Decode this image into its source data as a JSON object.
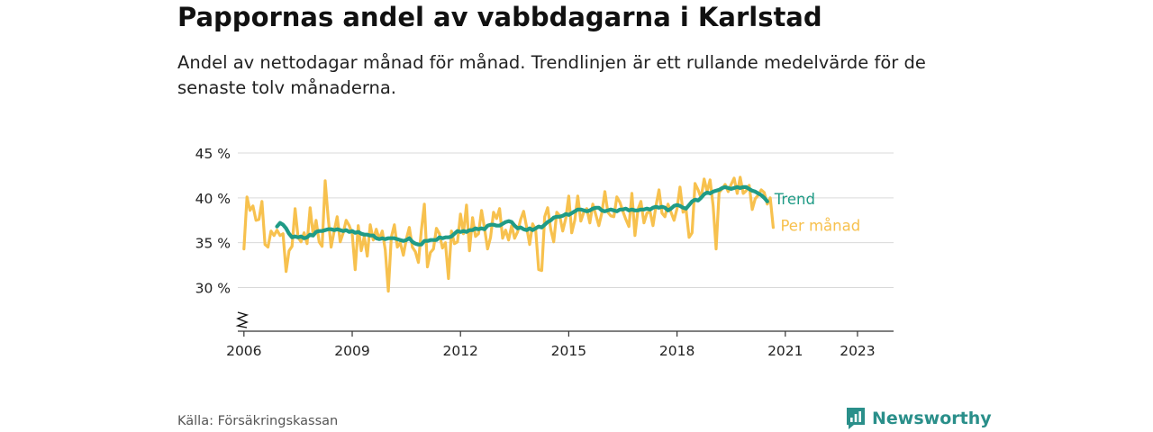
{
  "title": "Pappornas andel av vabbdagarna i Karlstad",
  "subtitle": "Andel av nettodagar månad för månad. Trendlinjen är ett rullande medelvärde för de senaste tolv månaderna.",
  "source": "Källa: Försäkringskassan",
  "brand": "Newsworthy",
  "colors": {
    "monthly": "#f7c14e",
    "trend": "#1f9b86",
    "grid": "#d9d9d9",
    "axis": "#333333",
    "brand": "#2a8f8a"
  },
  "chart_data": {
    "type": "line",
    "xlabel": "",
    "ylabel": "",
    "x_ticks": [
      "2006",
      "2009",
      "2012",
      "2015",
      "2018",
      "2021",
      "2023"
    ],
    "y_ticks": [
      "30 %",
      "35 %",
      "40 %",
      "45 %"
    ],
    "ylim": [
      25,
      45
    ],
    "y_axis_break": true,
    "grid": true,
    "series_labels": [
      "Trend",
      "Per månad"
    ],
    "series": [
      {
        "name": "Per månad",
        "x_start": "2006-01",
        "frequency": "monthly",
        "values": [
          34.3,
          40.1,
          38.6,
          39.1,
          37.5,
          37.6,
          39.6,
          34.8,
          34.5,
          36.3,
          35.8,
          36.4,
          35.8,
          36.0,
          31.8,
          34.1,
          34.6,
          38.8,
          35.6,
          35.1,
          36.1,
          34.9,
          38.9,
          35.9,
          37.5,
          35.1,
          34.6,
          41.9,
          37.8,
          34.5,
          36.3,
          37.9,
          35.1,
          36.1,
          37.5,
          36.9,
          36.0,
          32.0,
          36.9,
          34.1,
          35.7,
          33.5,
          37.0,
          35.3,
          36.5,
          35.4,
          36.3,
          34.2,
          29.6,
          35.6,
          37.0,
          34.5,
          35.0,
          33.6,
          35.4,
          36.7,
          34.5,
          34.0,
          32.8,
          36.4,
          39.3,
          32.3,
          33.9,
          34.3,
          36.6,
          36.0,
          34.4,
          35.0,
          31.0,
          36.3,
          34.9,
          35.1,
          38.2,
          36.0,
          39.2,
          34.1,
          37.8,
          35.7,
          36.0,
          38.6,
          36.6,
          34.3,
          35.6,
          38.4,
          37.7,
          38.8,
          35.5,
          36.4,
          35.3,
          36.9,
          35.5,
          36.2,
          37.6,
          38.5,
          36.7,
          34.8,
          37.1,
          36.4,
          32.0,
          31.9,
          37.9,
          38.9,
          36.5,
          35.1,
          38.4,
          38.0,
          36.3,
          37.7,
          40.2,
          36.1,
          37.5,
          40.2,
          37.4,
          38.4,
          38.8,
          37.2,
          39.3,
          38.1,
          36.9,
          38.3,
          40.7,
          38.4,
          38.0,
          37.9,
          40.1,
          39.5,
          38.5,
          37.6,
          36.8,
          40.5,
          35.8,
          38.7,
          39.6,
          37.2,
          38.3,
          38.5,
          36.9,
          39.1,
          40.9,
          38.3,
          37.9,
          39.3,
          38.4,
          37.5,
          38.8,
          41.2,
          38.4,
          38.7,
          35.6,
          36.1,
          41.6,
          40.9,
          40.0,
          42.1,
          40.7,
          42.0,
          39.1,
          34.3,
          40.6,
          41.0,
          41.5,
          40.7,
          41.5,
          42.2,
          40.5,
          42.3,
          40.5,
          40.8,
          41.4,
          38.7,
          39.9,
          40.3,
          40.9,
          40.6,
          39.3,
          40.0,
          36.7
        ]
      },
      {
        "name": "Trend",
        "x_start": "2006-12",
        "frequency": "monthly",
        "values": [
          36.8,
          37.2,
          37.0,
          36.6,
          36.0,
          35.6,
          35.7,
          35.6,
          35.7,
          35.5,
          35.6,
          35.9,
          35.8,
          36.2,
          36.3,
          36.3,
          36.4,
          36.5,
          36.5,
          36.4,
          36.5,
          36.4,
          36.3,
          36.4,
          36.2,
          36.3,
          36.1,
          36.2,
          36.0,
          35.9,
          35.9,
          35.8,
          35.8,
          35.5,
          35.4,
          35.5,
          35.4,
          35.5,
          35.5,
          35.5,
          35.4,
          35.3,
          35.2,
          35.3,
          35.5,
          35.1,
          34.9,
          34.8,
          34.8,
          35.2,
          35.2,
          35.3,
          35.3,
          35.3,
          35.6,
          35.5,
          35.6,
          35.6,
          35.7,
          36.0,
          36.3,
          36.2,
          36.3,
          36.2,
          36.4,
          36.4,
          36.6,
          36.5,
          36.6,
          36.5,
          36.9,
          37.0,
          37.0,
          36.9,
          36.9,
          37.1,
          37.3,
          37.4,
          37.3,
          36.9,
          36.6,
          36.7,
          36.5,
          36.4,
          36.6,
          36.4,
          36.6,
          36.8,
          36.7,
          37.0,
          37.3,
          37.5,
          37.8,
          37.9,
          37.9,
          38.0,
          38.2,
          38.1,
          38.3,
          38.5,
          38.7,
          38.7,
          38.6,
          38.5,
          38.6,
          38.8,
          38.9,
          38.9,
          38.6,
          38.5,
          38.6,
          38.7,
          38.6,
          38.5,
          38.7,
          38.7,
          38.8,
          38.6,
          38.7,
          38.6,
          38.6,
          38.7,
          38.7,
          38.8,
          38.7,
          38.9,
          39.0,
          38.9,
          39.0,
          38.9,
          38.6,
          38.8,
          39.1,
          39.2,
          39.1,
          38.9,
          38.8,
          39.2,
          39.6,
          39.8,
          39.7,
          40.0,
          40.4,
          40.6,
          40.5,
          40.7,
          40.8,
          40.9,
          41.1,
          41.2,
          41.1,
          41.0,
          41.1,
          41.2,
          41.1,
          41.2,
          41.2,
          41.0,
          40.8,
          40.7,
          40.5,
          40.3,
          40.0,
          39.6
        ]
      }
    ]
  }
}
